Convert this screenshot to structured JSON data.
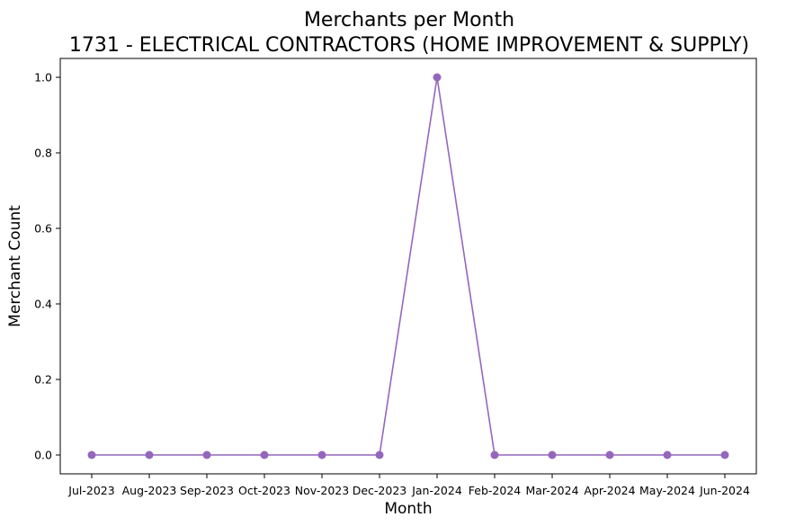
{
  "chart_data": {
    "type": "line",
    "title_line1": "Merchants per Month",
    "title_line2": "1731 - ELECTRICAL CONTRACTORS (HOME IMPROVEMENT & SUPPLY)",
    "xlabel": "Month",
    "ylabel": "Merchant Count",
    "categories": [
      "Jul-2023",
      "Aug-2023",
      "Sep-2023",
      "Oct-2023",
      "Nov-2023",
      "Dec-2023",
      "Jan-2024",
      "Feb-2024",
      "Mar-2024",
      "Apr-2024",
      "May-2024",
      "Jun-2024"
    ],
    "series": [
      {
        "values": [
          0,
          0,
          0,
          0,
          0,
          0,
          1,
          0,
          0,
          0,
          0,
          0
        ],
        "color": "#9467bd"
      }
    ],
    "yticks": [
      "0.0",
      "0.2",
      "0.4",
      "0.6",
      "0.8",
      "1.0"
    ],
    "ylim": [
      -0.05,
      1.05
    ],
    "grid": false,
    "marker": "circle"
  }
}
